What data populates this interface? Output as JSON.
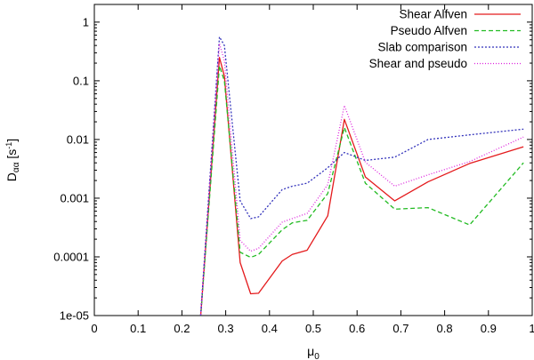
{
  "chart_data": {
    "type": "line",
    "xlabel_main": "μ",
    "xlabel_sub": "0",
    "ylabel_main": "D",
    "ylabel_sub": "αα",
    "ylabel_unit_pre": " [s",
    "ylabel_unit_sup": "-1",
    "ylabel_unit_post": "]",
    "xlim": [
      0,
      1
    ],
    "ylim": [
      1e-05,
      2
    ],
    "y_scale": "log",
    "grid": false,
    "legend_position": "top-right",
    "x_ticks": [
      {
        "value": 0,
        "label": "0"
      },
      {
        "value": 0.1,
        "label": "0.1"
      },
      {
        "value": 0.2,
        "label": "0.2"
      },
      {
        "value": 0.3,
        "label": "0.3"
      },
      {
        "value": 0.4,
        "label": "0.4"
      },
      {
        "value": 0.5,
        "label": "0.5"
      },
      {
        "value": 0.6,
        "label": "0.6"
      },
      {
        "value": 0.7,
        "label": "0.7"
      },
      {
        "value": 0.8,
        "label": "0.8"
      },
      {
        "value": 0.9,
        "label": "0.9"
      },
      {
        "value": 1,
        "label": "1"
      }
    ],
    "y_ticks": [
      {
        "value": 1e-05,
        "label": "1e-05"
      },
      {
        "value": 0.0001,
        "label": "0.0001"
      },
      {
        "value": 0.001,
        "label": "0.001"
      },
      {
        "value": 0.01,
        "label": "0.01"
      },
      {
        "value": 0.1,
        "label": "0.1"
      },
      {
        "value": 1,
        "label": "1"
      }
    ],
    "series": [
      {
        "name": "Shear Alfven",
        "color": "#e41a1c",
        "dash": "solid",
        "points": [
          [
            0.24,
            5e-06
          ],
          [
            0.2857,
            0.25
          ],
          [
            0.297,
            0.12
          ],
          [
            0.333,
            8e-05
          ],
          [
            0.357,
            2.35e-05
          ],
          [
            0.375,
            2.4e-05
          ],
          [
            0.429,
            8.5e-05
          ],
          [
            0.452,
            0.00011
          ],
          [
            0.486,
            0.00013
          ],
          [
            0.533,
            0.0005
          ],
          [
            0.571,
            0.022
          ],
          [
            0.619,
            0.0023
          ],
          [
            0.686,
            0.0009
          ],
          [
            0.762,
            0.0019
          ],
          [
            0.857,
            0.0039
          ],
          [
            0.98,
            0.0075
          ]
        ]
      },
      {
        "name": "Pseudo Alfven",
        "color": "#22bb22",
        "dash": "dashed",
        "points": [
          [
            0.24,
            5e-06
          ],
          [
            0.2857,
            0.18
          ],
          [
            0.297,
            0.1
          ],
          [
            0.333,
            0.00012
          ],
          [
            0.357,
            9.8e-05
          ],
          [
            0.375,
            0.00011
          ],
          [
            0.429,
            0.00029
          ],
          [
            0.452,
            0.00038
          ],
          [
            0.486,
            0.00042
          ],
          [
            0.533,
            0.0012
          ],
          [
            0.571,
            0.016
          ],
          [
            0.619,
            0.0018
          ],
          [
            0.686,
            0.00065
          ],
          [
            0.762,
            0.00069
          ],
          [
            0.857,
            0.00035
          ],
          [
            0.98,
            0.004
          ]
        ]
      },
      {
        "name": "Slab comparison",
        "color": "#3333bb",
        "dash": "dotted",
        "points": [
          [
            0.24,
            5e-06
          ],
          [
            0.2857,
            0.56
          ],
          [
            0.297,
            0.4
          ],
          [
            0.333,
            0.0009
          ],
          [
            0.357,
            0.00045
          ],
          [
            0.375,
            0.00048
          ],
          [
            0.429,
            0.0014
          ],
          [
            0.452,
            0.0016
          ],
          [
            0.486,
            0.0018
          ],
          [
            0.533,
            0.0033
          ],
          [
            0.571,
            0.006
          ],
          [
            0.619,
            0.0044
          ],
          [
            0.686,
            0.005
          ],
          [
            0.762,
            0.01
          ],
          [
            0.857,
            0.012
          ],
          [
            0.98,
            0.015
          ]
        ]
      },
      {
        "name": "Shear and pseudo",
        "color": "#dd22dd",
        "dash": "dotted-fine",
        "points": [
          [
            0.24,
            5e-06
          ],
          [
            0.2857,
            0.43
          ],
          [
            0.297,
            0.22
          ],
          [
            0.333,
            0.00019
          ],
          [
            0.357,
            0.000125
          ],
          [
            0.375,
            0.00014
          ],
          [
            0.429,
            0.00039
          ],
          [
            0.452,
            0.00045
          ],
          [
            0.486,
            0.00055
          ],
          [
            0.533,
            0.0017
          ],
          [
            0.571,
            0.038
          ],
          [
            0.619,
            0.0041
          ],
          [
            0.686,
            0.0016
          ],
          [
            0.762,
            0.0025
          ],
          [
            0.857,
            0.0042
          ],
          [
            0.98,
            0.011
          ]
        ]
      }
    ]
  }
}
